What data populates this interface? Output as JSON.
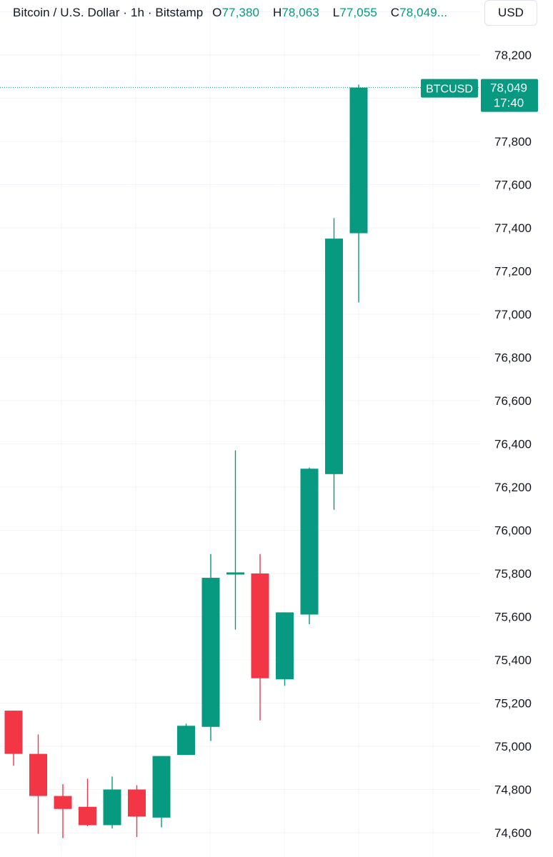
{
  "legend": {
    "symbol": "Bitcoin / U.S. Dollar · 1h · Bitstamp",
    "open_label": "O",
    "open": "77,380",
    "high_label": "H",
    "high": "78,063",
    "low_label": "L",
    "low": "77,055",
    "close_label": "C",
    "close": "78,049..."
  },
  "currency_button": "USD",
  "price_tag": {
    "symbol": "BTCUSD",
    "price": "78,049",
    "countdown": "17:40"
  },
  "colors": {
    "up": "#089981",
    "down": "#f23645",
    "grid": "#f0f3fa",
    "text": "#131722"
  },
  "chart_data": {
    "type": "candlestick",
    "title": "Bitcoin / U.S. Dollar · 1h · Bitstamp",
    "ylim": [
      74530,
      78560
    ],
    "yticks": [
      74600,
      74800,
      75000,
      75200,
      75400,
      75600,
      75800,
      76000,
      76200,
      76400,
      76600,
      76800,
      77000,
      77200,
      77400,
      77600,
      77800,
      78200
    ],
    "ytick_labels": [
      "74,600",
      "74,800",
      "75,000",
      "75,200",
      "75,400",
      "75,600",
      "75,800",
      "76,000",
      "76,200",
      "76,400",
      "76,600",
      "76,800",
      "77,000",
      "77,200",
      "77,400",
      "77,600",
      "77,800",
      "78,200"
    ],
    "grid": true,
    "last_price": 78049,
    "candles": [
      {
        "o": 75165,
        "h": 75165,
        "l": 74910,
        "c": 74965
      },
      {
        "o": 74965,
        "h": 75055,
        "l": 74595,
        "c": 74770
      },
      {
        "o": 74770,
        "h": 74825,
        "l": 74575,
        "c": 74710
      },
      {
        "o": 74720,
        "h": 74850,
        "l": 74630,
        "c": 74635
      },
      {
        "o": 74635,
        "h": 74860,
        "l": 74620,
        "c": 74800
      },
      {
        "o": 74800,
        "h": 74820,
        "l": 74580,
        "c": 74675
      },
      {
        "o": 74670,
        "h": 74955,
        "l": 74625,
        "c": 74955
      },
      {
        "o": 74960,
        "h": 75105,
        "l": 74960,
        "c": 75095
      },
      {
        "o": 75090,
        "h": 75890,
        "l": 75025,
        "c": 75780
      },
      {
        "o": 75795,
        "h": 76370,
        "l": 75540,
        "c": 75805
      },
      {
        "o": 75800,
        "h": 75890,
        "l": 75120,
        "c": 75315
      },
      {
        "o": 75310,
        "h": 75620,
        "l": 75280,
        "c": 75620
      },
      {
        "o": 75610,
        "h": 76290,
        "l": 75565,
        "c": 76285
      },
      {
        "o": 76260,
        "h": 77445,
        "l": 76095,
        "c": 77350
      },
      {
        "o": 77375,
        "h": 78063,
        "l": 77055,
        "c": 78049
      }
    ]
  }
}
